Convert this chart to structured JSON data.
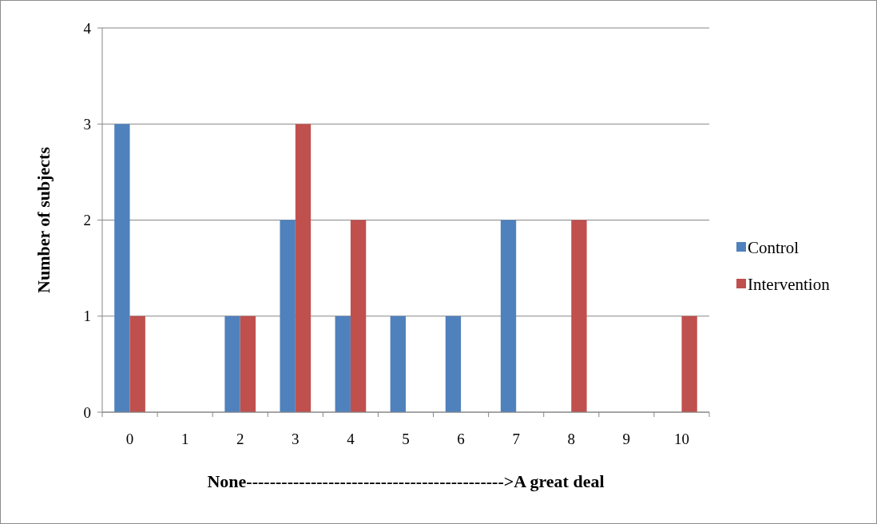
{
  "chart_data": {
    "type": "bar",
    "xlabel": "None-------------------------------------------->A great deal",
    "ylabel": "Number of subjects",
    "categories": [
      "0",
      "1",
      "2",
      "3",
      "4",
      "5",
      "6",
      "7",
      "8",
      "9",
      "10"
    ],
    "series": [
      {
        "name": "Control",
        "color": "#4f81bd",
        "values": [
          3,
          0,
          1,
          2,
          1,
          1,
          1,
          2,
          0,
          0,
          0
        ]
      },
      {
        "name": "Intervention",
        "color": "#c0504d",
        "values": [
          1,
          0,
          1,
          3,
          2,
          0,
          0,
          0,
          2,
          0,
          1
        ]
      }
    ],
    "ylim": [
      0,
      4
    ],
    "yticks": [
      0,
      1,
      2,
      3,
      4
    ],
    "grid": "y",
    "legend": "right"
  }
}
